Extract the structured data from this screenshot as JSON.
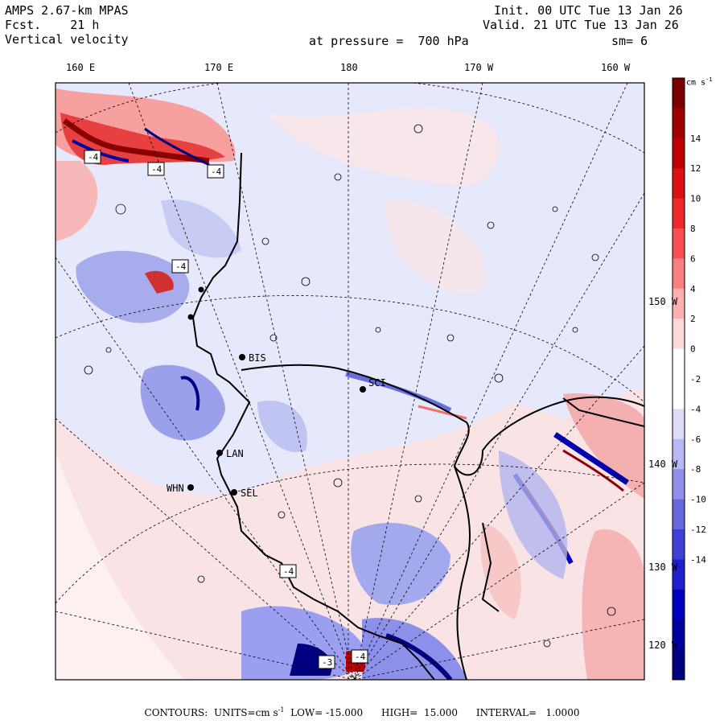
{
  "header": {
    "model": "AMPS 2.67-km MPAS",
    "forecast_label": "Fcst.",
    "forecast_hours": "21 h",
    "field": "Vertical velocity",
    "init": "Init. 00 UTC Tue 13 Jan 26",
    "valid": "Valid. 21 UTC Tue 13 Jan 26",
    "pressure": "at pressure =  700 hPa",
    "smoothing": "sm= 6"
  },
  "longitude_labels_top": [
    "160 E",
    "170 E",
    "180",
    "170 W",
    "160 W"
  ],
  "longitude_labels_right": [
    "150 W",
    "140 W",
    "130 W",
    "120 W"
  ],
  "colorbar": {
    "units_label": "cm s",
    "units_exp": "-1",
    "ticks": [
      "14",
      "12",
      "10",
      "8",
      "6",
      "4",
      "2",
      "0",
      "-2",
      "-4",
      "-6",
      "-8",
      "-10",
      "-12",
      "-14"
    ],
    "colors": [
      "#7a0000",
      "#a00000",
      "#c00000",
      "#dc1010",
      "#f02828",
      "#f85050",
      "#fa8080",
      "#fcb0b0",
      "#fed8d8",
      "#ffffff",
      "#ffffff",
      "#dcdcfa",
      "#b8b8f4",
      "#9090ec",
      "#6868e0",
      "#4040d8",
      "#2020d0",
      "#0000c0",
      "#0000a0",
      "#000080"
    ]
  },
  "stations": [
    {
      "code": "BIS"
    },
    {
      "code": "SCI"
    },
    {
      "code": "LAN"
    },
    {
      "code": "WHN"
    },
    {
      "code": "SEL"
    }
  ],
  "contour_labels": [
    "-4",
    "-4",
    "-4",
    "-4",
    "-4",
    "-3",
    "-4"
  ],
  "footer": {
    "contours": "CONTOURS:",
    "units": "UNITS=cm s",
    "units_exp": "-1",
    "low": "LOW= -15.000",
    "high": "HIGH=  15.000",
    "interval": "INTERVAL=   1.0000"
  }
}
